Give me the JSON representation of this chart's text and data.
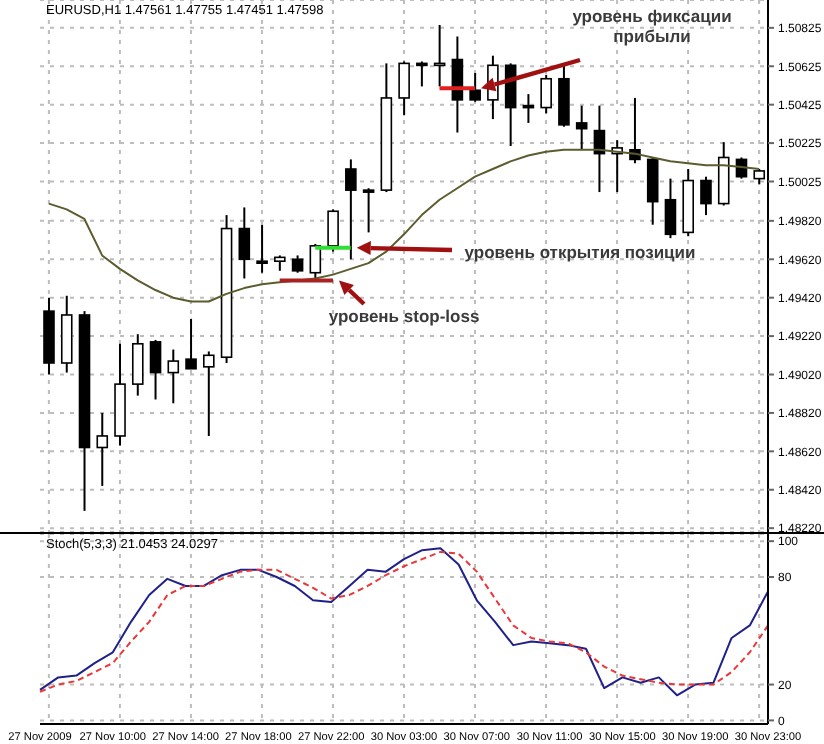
{
  "chart_data": [
    {
      "type": "candlestick",
      "title": "EURUSD,H1 1.47561 1.47755 1.47451 1.47598",
      "categories": [
        null,
        null,
        null,
        null,
        null,
        null,
        null,
        null,
        null,
        null,
        null,
        null,
        null,
        null,
        null,
        null,
        null,
        null,
        null,
        null,
        null,
        null,
        null,
        null,
        null,
        null,
        null,
        null,
        null,
        null,
        null,
        null,
        null,
        null,
        null,
        null,
        null,
        null,
        null,
        null,
        null
      ],
      "ohlc": [
        [
          1.4935,
          1.4942,
          1.4902,
          1.4908
        ],
        [
          1.4908,
          1.4943,
          1.4903,
          1.4933
        ],
        [
          1.4933,
          1.4935,
          1.4831,
          1.4864
        ],
        [
          1.4864,
          1.4882,
          1.4844,
          1.487
        ],
        [
          1.487,
          1.4918,
          1.4865,
          1.4897
        ],
        [
          1.4897,
          1.4923,
          1.4891,
          1.4918
        ],
        [
          1.4919,
          1.492,
          1.4889,
          1.4903
        ],
        [
          1.4903,
          1.4915,
          1.4887,
          1.4909
        ],
        [
          1.491,
          1.4931,
          1.4905,
          1.4905
        ],
        [
          1.4906,
          1.4914,
          1.487,
          1.4912
        ],
        [
          1.4911,
          1.4985,
          1.4908,
          1.4978
        ],
        [
          1.4978,
          1.4989,
          1.4952,
          1.4962
        ],
        [
          1.4961,
          1.498,
          1.4955,
          1.496
        ],
        [
          1.4961,
          1.4964,
          1.4956,
          1.4963
        ],
        [
          1.4962,
          1.4964,
          1.4955,
          1.4956
        ],
        [
          1.4955,
          1.497,
          1.4952,
          1.4969
        ],
        [
          1.4969,
          1.4988,
          1.4966,
          1.4987
        ],
        [
          1.5009,
          1.5014,
          1.4962,
          1.4998
        ],
        [
          1.4998,
          1.4999,
          1.4976,
          1.4997
        ],
        [
          1.4998,
          1.5064,
          1.4997,
          1.5046
        ],
        [
          1.5046,
          1.5065,
          1.5037,
          1.5064
        ],
        [
          1.5064,
          1.5065,
          1.5052,
          1.5063
        ],
        [
          1.5063,
          1.5084,
          1.5052,
          1.5064
        ],
        [
          1.5066,
          1.5078,
          1.5028,
          1.5045
        ],
        [
          1.505,
          1.5059,
          1.5044,
          1.5045
        ],
        [
          1.5045,
          1.5068,
          1.5035,
          1.5063
        ],
        [
          1.5063,
          1.5064,
          1.5021,
          1.5041
        ],
        [
          1.5042,
          1.5048,
          1.5033,
          1.5041
        ],
        [
          1.5041,
          1.5058,
          1.5038,
          1.5056
        ],
        [
          1.5056,
          1.5063,
          1.5031,
          1.5032
        ],
        [
          1.5033,
          1.5042,
          1.5019,
          1.503
        ],
        [
          1.5029,
          1.5042,
          1.4997,
          1.5017
        ],
        [
          1.5017,
          1.5024,
          1.4997,
          1.502
        ],
        [
          1.5019,
          1.5046,
          1.5012,
          1.5014
        ],
        [
          1.5014,
          1.5015,
          1.498,
          1.4992
        ],
        [
          1.4993,
          1.5004,
          1.4973,
          1.4975
        ],
        [
          1.4976,
          1.5009,
          1.4974,
          1.5003
        ],
        [
          1.5003,
          1.5005,
          1.4985,
          1.4991
        ],
        [
          1.4991,
          1.5023,
          1.499,
          1.5015
        ],
        [
          1.5014,
          1.5015,
          1.5004,
          1.5005
        ],
        [
          1.5004,
          1.5009,
          1.5001,
          1.5008
        ]
      ],
      "series": [
        {
          "type": "line",
          "color": "#5c5c2e",
          "values": [
            1.4991,
            1.4988,
            1.4983,
            1.4964,
            1.4957,
            1.4951,
            1.4946,
            1.4942,
            1.494,
            1.494,
            1.4944,
            1.4947,
            1.4949,
            1.495,
            1.4951,
            1.4952,
            1.4954,
            1.4957,
            1.496,
            1.4966,
            1.4975,
            1.4985,
            1.4993,
            1.4999,
            1.5005,
            1.5009,
            1.5013,
            1.5016,
            1.5018,
            1.5019,
            1.5019,
            1.5019,
            1.5018,
            1.5017,
            1.5015,
            1.5013,
            1.5012,
            1.5011,
            1.5011,
            1.501,
            1.5009
          ]
        },
        {
          "type": "line",
          "color": "#e02020",
          "values": [
            null,
            null,
            null,
            null,
            null,
            null,
            null,
            null,
            null,
            null,
            null,
            null,
            null,
            null,
            null,
            null,
            null,
            null,
            null,
            null,
            null,
            null,
            1.5051,
            1.5051,
            1.5051,
            null,
            null,
            null,
            null,
            null,
            null,
            null,
            null,
            null,
            null,
            null,
            null,
            null,
            null,
            null,
            null
          ]
        },
        {
          "type": "line",
          "color": "#33dd33",
          "values": [
            null,
            null,
            null,
            null,
            null,
            null,
            null,
            null,
            null,
            null,
            null,
            null,
            null,
            null,
            null,
            1.4968,
            1.4968,
            1.4968,
            null,
            null,
            null,
            null,
            null,
            null,
            null,
            null,
            null,
            null,
            null,
            null,
            null,
            null,
            null,
            null,
            null,
            null,
            null,
            null,
            null,
            null,
            null
          ]
        },
        {
          "type": "line",
          "color": "#a82222",
          "values": [
            null,
            null,
            null,
            null,
            null,
            null,
            null,
            null,
            null,
            null,
            null,
            null,
            null,
            1.4951,
            1.4951,
            1.4951,
            1.4951,
            null,
            null,
            null,
            null,
            null,
            null,
            null,
            null,
            null,
            null,
            null,
            null,
            null,
            null,
            null,
            null,
            null,
            null,
            null,
            null,
            null,
            null,
            null,
            null
          ]
        }
      ],
      "ylim": [
        1.482,
        1.5097
      ],
      "yticks": [
        1.50825,
        1.50625,
        1.50425,
        1.50225,
        1.50025,
        {
          "value": 1.4982,
          "label": "1.49820"
        },
        {
          "value": 1.4962,
          "label": "1.49620"
        },
        {
          "value": 1.4942,
          "label": "1.49420"
        },
        {
          "value": 1.4922,
          "label": "1.49220"
        },
        {
          "value": 1.4902,
          "label": "1.49020"
        },
        {
          "value": 1.4882,
          "label": "1.48820"
        },
        {
          "value": 1.4862,
          "label": "1.48620"
        },
        {
          "value": 1.4842,
          "label": "1.48420"
        },
        {
          "value": 1.4822,
          "label": "1.48220"
        }
      ],
      "grid": true,
      "tick_labels": "y",
      "annotations": [
        "уровень фиксации прибыли",
        "уровень открытия позиции",
        "уровень stop-loss"
      ]
    },
    {
      "type": "line",
      "title": "Stoch(5,3,3) 21.0453 24.0297",
      "categories": [
        "27 Nov 2009",
        null,
        null,
        null,
        "27 Nov 10:00",
        null,
        null,
        null,
        "27 Nov 14:00",
        null,
        null,
        null,
        "27 Nov 18:00",
        null,
        null,
        null,
        "27 Nov 22:00",
        null,
        null,
        null,
        "30 Nov 03:00",
        null,
        null,
        null,
        "30 Nov 07:00",
        null,
        null,
        null,
        "30 Nov 11:00",
        null,
        null,
        null,
        "30 Nov 15:00",
        null,
        null,
        null,
        "30 Nov 19:00",
        null,
        null,
        null,
        "30 Nov 23:00"
      ],
      "series": [
        {
          "color": "#20208a",
          "line_style": "solid",
          "values": [
            17,
            24,
            25,
            32,
            38,
            55,
            70,
            79,
            75,
            75,
            81,
            84,
            84,
            80,
            75,
            67,
            66,
            75,
            84,
            83,
            90,
            95,
            96,
            87,
            67,
            55,
            42,
            44,
            43,
            42,
            40,
            18,
            24,
            21,
            24,
            14,
            20,
            21,
            46,
            53,
            72
          ]
        },
        {
          "color": "#e8383a",
          "line_style": "dashed",
          "values": [
            16,
            20,
            22,
            27,
            32,
            44,
            55,
            70,
            75,
            75,
            79,
            83,
            84,
            84,
            79,
            74,
            68,
            70,
            75,
            81,
            86,
            90,
            94,
            93,
            83,
            68,
            53,
            46,
            44,
            43,
            38,
            30,
            25,
            23,
            21,
            20,
            20,
            20,
            27,
            38,
            53
          ]
        }
      ],
      "ylim": [
        -2,
        104
      ],
      "yticks": [
        0,
        20,
        80,
        100
      ],
      "grid": true
    }
  ]
}
